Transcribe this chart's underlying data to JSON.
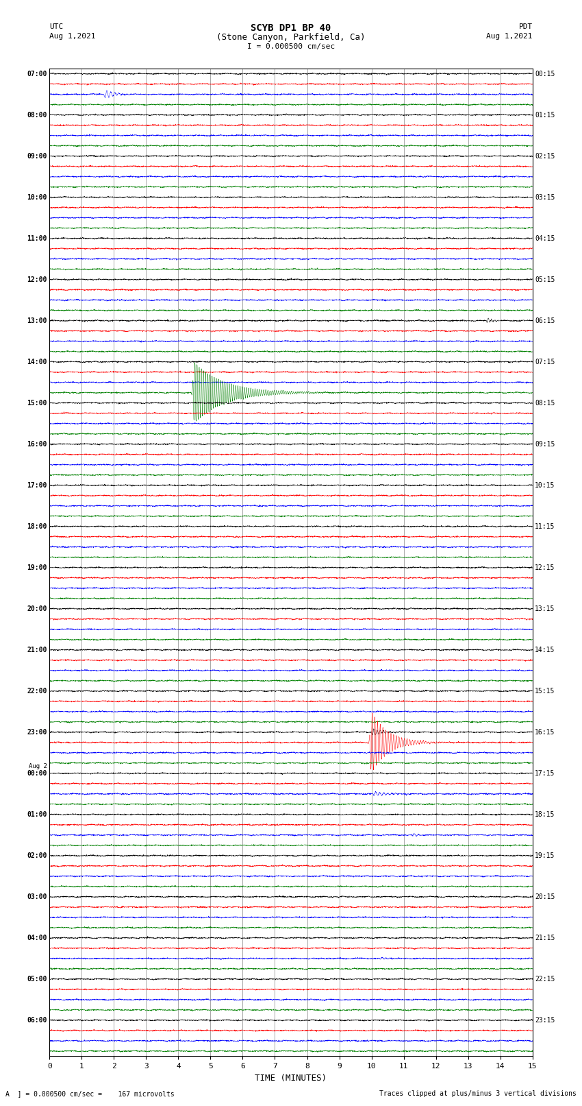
{
  "title_line1": "SCYB DP1 BP 40",
  "title_line2": "(Stone Canyon, Parkfield, Ca)",
  "scale_text": "I = 0.000500 cm/sec",
  "left_header1": "UTC",
  "left_header2": "Aug 1,2021",
  "right_header1": "PDT",
  "right_header2": "Aug 1,2021",
  "xlabel": "TIME (MINUTES)",
  "footer_left": "A  ] = 0.000500 cm/sec =    167 microvolts",
  "footer_right": "Traces clipped at plus/minus 3 vertical divisions",
  "xlim": [
    0,
    15
  ],
  "xticks": [
    0,
    1,
    2,
    3,
    4,
    5,
    6,
    7,
    8,
    9,
    10,
    11,
    12,
    13,
    14,
    15
  ],
  "utc_labels": [
    "07:00",
    "08:00",
    "09:00",
    "10:00",
    "11:00",
    "12:00",
    "13:00",
    "14:00",
    "15:00",
    "16:00",
    "17:00",
    "18:00",
    "19:00",
    "20:00",
    "21:00",
    "22:00",
    "23:00",
    "Aug 2",
    "00:00",
    "01:00",
    "02:00",
    "03:00",
    "04:00",
    "05:00",
    "06:00"
  ],
  "pdt_labels": [
    "00:15",
    "01:15",
    "02:15",
    "03:15",
    "04:15",
    "05:15",
    "06:15",
    "07:15",
    "08:15",
    "09:15",
    "10:15",
    "11:15",
    "12:15",
    "13:15",
    "14:15",
    "15:15",
    "16:15",
    "17:15",
    "18:15",
    "19:15",
    "20:15",
    "21:15",
    "22:15",
    "23:15"
  ],
  "n_rows": 24,
  "channel_colors": [
    "black",
    "red",
    "blue",
    "green"
  ],
  "bg_color": "white",
  "noise_amplitude": 0.06,
  "events": [
    {
      "row": 7,
      "ch": 3,
      "color": "green",
      "t0": 4.5,
      "amp": 3.0,
      "decay_rise": 0.05,
      "decay_fall": 0.9,
      "freq": 15
    },
    {
      "row": 6,
      "ch": 0,
      "color": "black",
      "t0": 13.6,
      "amp": 0.25,
      "decay_rise": 0.03,
      "decay_fall": 0.15,
      "freq": 10
    },
    {
      "row": 0,
      "ch": 2,
      "color": "blue",
      "t0": 1.75,
      "amp": 0.4,
      "decay_rise": 0.05,
      "decay_fall": 0.3,
      "freq": 8
    },
    {
      "row": 16,
      "ch": 1,
      "color": "red",
      "t0": 10.0,
      "amp": 3.0,
      "decay_rise": 0.05,
      "decay_fall": 0.5,
      "freq": 12
    },
    {
      "row": 16,
      "ch": 0,
      "color": "black",
      "t0": 10.05,
      "amp": 0.3,
      "decay_rise": 0.05,
      "decay_fall": 0.3,
      "freq": 10
    },
    {
      "row": 17,
      "ch": 2,
      "color": "blue",
      "t0": 10.1,
      "amp": 0.2,
      "decay_rise": 0.05,
      "decay_fall": 0.4,
      "freq": 8
    },
    {
      "row": 18,
      "ch": 2,
      "color": "blue",
      "t0": 11.3,
      "amp": 0.12,
      "decay_rise": 0.05,
      "decay_fall": 0.2,
      "freq": 8
    },
    {
      "row": 21,
      "ch": 2,
      "color": "blue",
      "t0": 10.3,
      "amp": 0.12,
      "decay_rise": 0.05,
      "decay_fall": 0.2,
      "freq": 8
    }
  ]
}
